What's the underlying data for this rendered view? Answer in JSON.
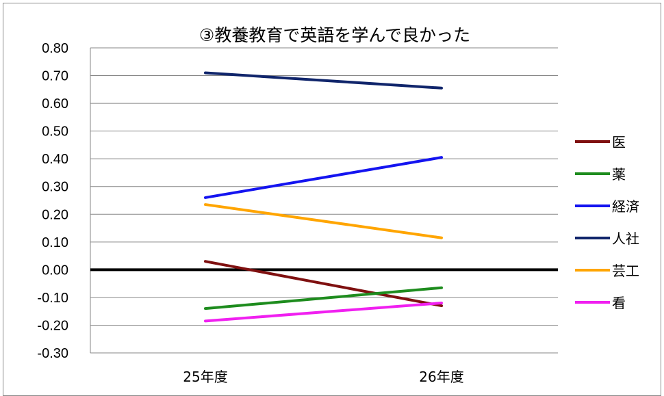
{
  "chart_data": {
    "type": "line",
    "title": "③教養教育で英語を学んで良かった",
    "xlabel": "",
    "ylabel": "",
    "categories": [
      "25年度",
      "26年度"
    ],
    "ylim": [
      -0.3,
      0.8
    ],
    "yticks": [
      "0.80",
      "0.70",
      "0.60",
      "0.50",
      "0.40",
      "0.30",
      "0.20",
      "0.10",
      "0.00",
      "-0.10",
      "-0.20",
      "-0.30"
    ],
    "grid": true,
    "legend_position": "right",
    "series": [
      {
        "name": "医",
        "color": "#7F1010",
        "values": [
          0.03,
          -0.13
        ]
      },
      {
        "name": "薬",
        "color": "#1E8C1E",
        "values": [
          -0.14,
          -0.065
        ]
      },
      {
        "name": "経済",
        "color": "#1414F0",
        "values": [
          0.26,
          0.405
        ]
      },
      {
        "name": "人社",
        "color": "#10256B",
        "values": [
          0.71,
          0.655
        ]
      },
      {
        "name": "芸工",
        "color": "#FFA500",
        "values": [
          0.235,
          0.115
        ]
      },
      {
        "name": "看",
        "color": "#F020F0",
        "values": [
          -0.185,
          -0.12
        ]
      }
    ]
  }
}
